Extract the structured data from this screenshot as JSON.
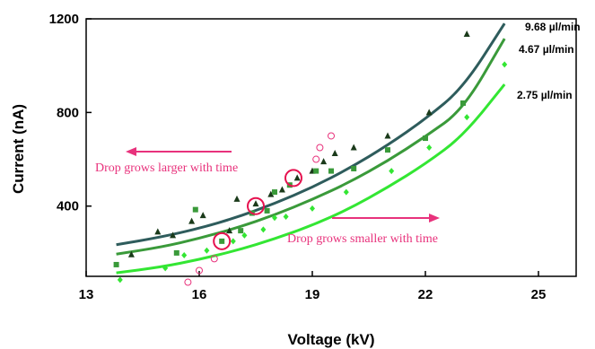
{
  "chart_data": {
    "type": "scatter",
    "title": "",
    "xlabel": "Voltage (kV)",
    "ylabel": "Current (nA)",
    "xlim": [
      13,
      26
    ],
    "ylim": [
      100,
      1200
    ],
    "xticks": [
      13,
      16,
      19,
      22,
      25
    ],
    "yticks": [
      400,
      800,
      1200
    ],
    "grid": false,
    "colors": {
      "9.68": "#2e5c5c",
      "4.67": "#3a9a3a",
      "2.75": "#33e633",
      "drop": "#e8327c",
      "triangles": "#1a3a1a",
      "squares": "#3a9a3a",
      "diamonds": "#33e633"
    },
    "series": [
      {
        "name": "9.68 µl/min",
        "marker": "triangle",
        "points": [
          [
            14.2,
            193
          ],
          [
            14.9,
            290
          ],
          [
            15.3,
            275
          ],
          [
            15.8,
            335
          ],
          [
            16.1,
            360
          ],
          [
            16.8,
            295
          ],
          [
            17.0,
            430
          ],
          [
            17.5,
            410
          ],
          [
            17.9,
            450
          ],
          [
            18.2,
            470
          ],
          [
            18.6,
            520
          ],
          [
            19.0,
            550
          ],
          [
            19.3,
            590
          ],
          [
            19.6,
            625
          ],
          [
            20.1,
            650
          ],
          [
            21.0,
            700
          ],
          [
            22.1,
            800
          ],
          [
            23.1,
            1135
          ]
        ],
        "fit": [
          [
            13.8,
            235
          ],
          [
            15,
            268
          ],
          [
            16,
            305
          ],
          [
            17,
            352
          ],
          [
            18,
            411
          ],
          [
            19,
            480
          ],
          [
            20,
            563
          ],
          [
            21,
            660
          ],
          [
            22,
            772
          ],
          [
            23,
            905
          ],
          [
            24.1,
            1180
          ]
        ]
      },
      {
        "name": "4.67 µl/min",
        "marker": "square",
        "points": [
          [
            13.8,
            150
          ],
          [
            15.4,
            200
          ],
          [
            15.9,
            385
          ],
          [
            16.6,
            250
          ],
          [
            17.1,
            295
          ],
          [
            17.4,
            370
          ],
          [
            17.8,
            380
          ],
          [
            18.0,
            460
          ],
          [
            18.4,
            490
          ],
          [
            19.1,
            550
          ],
          [
            19.5,
            550
          ],
          [
            20.1,
            560
          ],
          [
            21.0,
            640
          ],
          [
            22.0,
            690
          ],
          [
            23.0,
            840
          ]
        ],
        "fit": [
          [
            13.8,
            195
          ],
          [
            15,
            225
          ],
          [
            16,
            262
          ],
          [
            17,
            307
          ],
          [
            18,
            362
          ],
          [
            19,
            428
          ],
          [
            20,
            503
          ],
          [
            21,
            593
          ],
          [
            22,
            697
          ],
          [
            23,
            812
          ],
          [
            24.1,
            1115
          ]
        ]
      },
      {
        "name": "2.75 µl/min",
        "marker": "diamond",
        "points": [
          [
            13.9,
            85
          ],
          [
            15.1,
            135
          ],
          [
            15.6,
            190
          ],
          [
            16.2,
            210
          ],
          [
            16.9,
            250
          ],
          [
            17.2,
            275
          ],
          [
            17.7,
            300
          ],
          [
            18.0,
            350
          ],
          [
            18.3,
            355
          ],
          [
            19.0,
            390
          ],
          [
            19.9,
            460
          ],
          [
            21.1,
            550
          ],
          [
            22.1,
            650
          ],
          [
            23.1,
            780
          ],
          [
            24.1,
            1005
          ]
        ],
        "fit": [
          [
            13.8,
            115
          ],
          [
            15,
            140
          ],
          [
            16,
            172
          ],
          [
            17,
            211
          ],
          [
            18,
            260
          ],
          [
            19,
            318
          ],
          [
            20,
            390
          ],
          [
            21,
            480
          ],
          [
            22,
            580
          ],
          [
            23,
            700
          ],
          [
            24.1,
            920
          ]
        ]
      }
    ],
    "drop_points": [
      [
        15.7,
        75
      ],
      [
        16.0,
        125
      ],
      [
        16.4,
        175
      ],
      [
        19.1,
        600
      ],
      [
        19.2,
        650
      ],
      [
        19.5,
        700
      ]
    ],
    "highlighted": [
      [
        16.6,
        250
      ],
      [
        17.5,
        400
      ],
      [
        18.5,
        520
      ]
    ],
    "series_labels": [
      "9.68 µl/min",
      "4.67 µl/min",
      "2.75 µl/min"
    ],
    "annotations": {
      "larger": "Drop grows larger with time",
      "smaller": "Drop grows smaller with time"
    }
  }
}
